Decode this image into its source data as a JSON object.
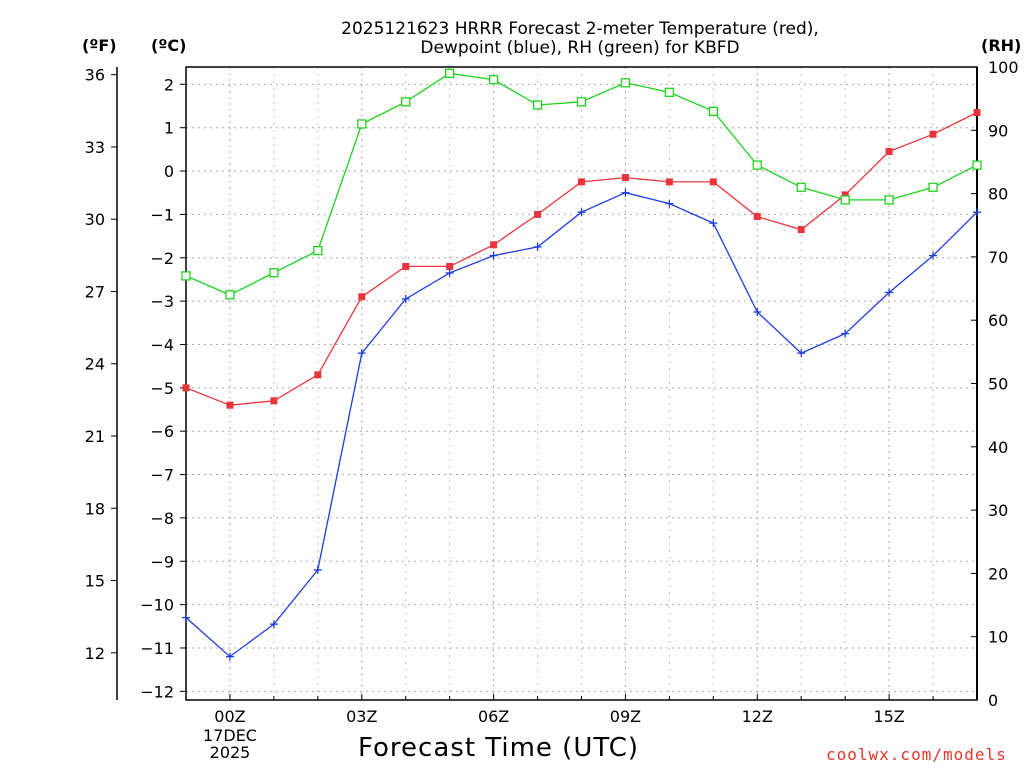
{
  "chart_data": {
    "type": "line",
    "title_line1": "2025121623 HRRR Forecast 2-meter Temperature (red),",
    "title_line2": "Dewpoint (blue), RH (green) for KBFD",
    "xlabel": "Forecast Time (UTC)",
    "date_line1": "17DEC",
    "date_line2": "2025",
    "credit": "coolwx.com/models",
    "units": {
      "fahrenheit": "(ºF)",
      "celsius": "(ºC)",
      "rh": "(RH)"
    },
    "x_hours": [
      -1,
      0,
      1,
      2,
      3,
      4,
      5,
      6,
      7,
      8,
      9,
      10,
      11,
      12,
      13,
      14,
      15,
      16,
      17
    ],
    "x_ticks": [
      {
        "hour": 0,
        "label": "00Z"
      },
      {
        "hour": 3,
        "label": "03Z"
      },
      {
        "hour": 6,
        "label": "06Z"
      },
      {
        "hour": 9,
        "label": "09Z"
      },
      {
        "hour": 12,
        "label": "12Z"
      },
      {
        "hour": 15,
        "label": "15Z"
      }
    ],
    "xlim": [
      -1,
      17
    ],
    "ylim_c": [
      -12.2,
      2.4
    ],
    "c_ticks": [
      2,
      1,
      0,
      -1,
      -2,
      -3,
      -4,
      -5,
      -6,
      -7,
      -8,
      -9,
      -10,
      -11,
      -12
    ],
    "f_ticks": [
      36,
      33,
      30,
      27,
      24,
      21,
      18,
      15,
      12
    ],
    "rh_ticks": [
      100,
      90,
      80,
      70,
      60,
      50,
      40,
      30,
      20,
      10,
      0
    ],
    "rh_lim": [
      0,
      100
    ],
    "series": [
      {
        "name": "Temperature",
        "color": "#e8343a",
        "marker": "filled-square",
        "values": [
          -5.0,
          -5.4,
          -5.3,
          -4.7,
          -2.9,
          -2.2,
          -2.2,
          -1.7,
          -1.0,
          -0.25,
          -0.15,
          -0.25,
          -0.25,
          -1.05,
          -1.35,
          -0.55,
          0.45,
          0.85,
          1.35
        ]
      },
      {
        "name": "Dewpoint",
        "color": "#1c3de0",
        "marker": "plus",
        "values": [
          -10.3,
          -11.2,
          -10.45,
          -9.2,
          -4.2,
          -2.95,
          -2.35,
          -1.95,
          -1.75,
          -0.95,
          -0.5,
          -0.75,
          -1.2,
          -3.25,
          -4.2,
          -3.75,
          -2.8,
          -1.95,
          -0.95
        ]
      },
      {
        "name": "RH",
        "axis": "rh",
        "color": "#1ed21e",
        "marker": "open-square",
        "values": [
          67,
          64,
          67.5,
          71,
          91,
          94.5,
          99,
          98,
          94,
          94.5,
          97.5,
          96,
          93,
          84.5,
          81,
          79,
          79,
          81,
          84.5
        ]
      }
    ]
  }
}
